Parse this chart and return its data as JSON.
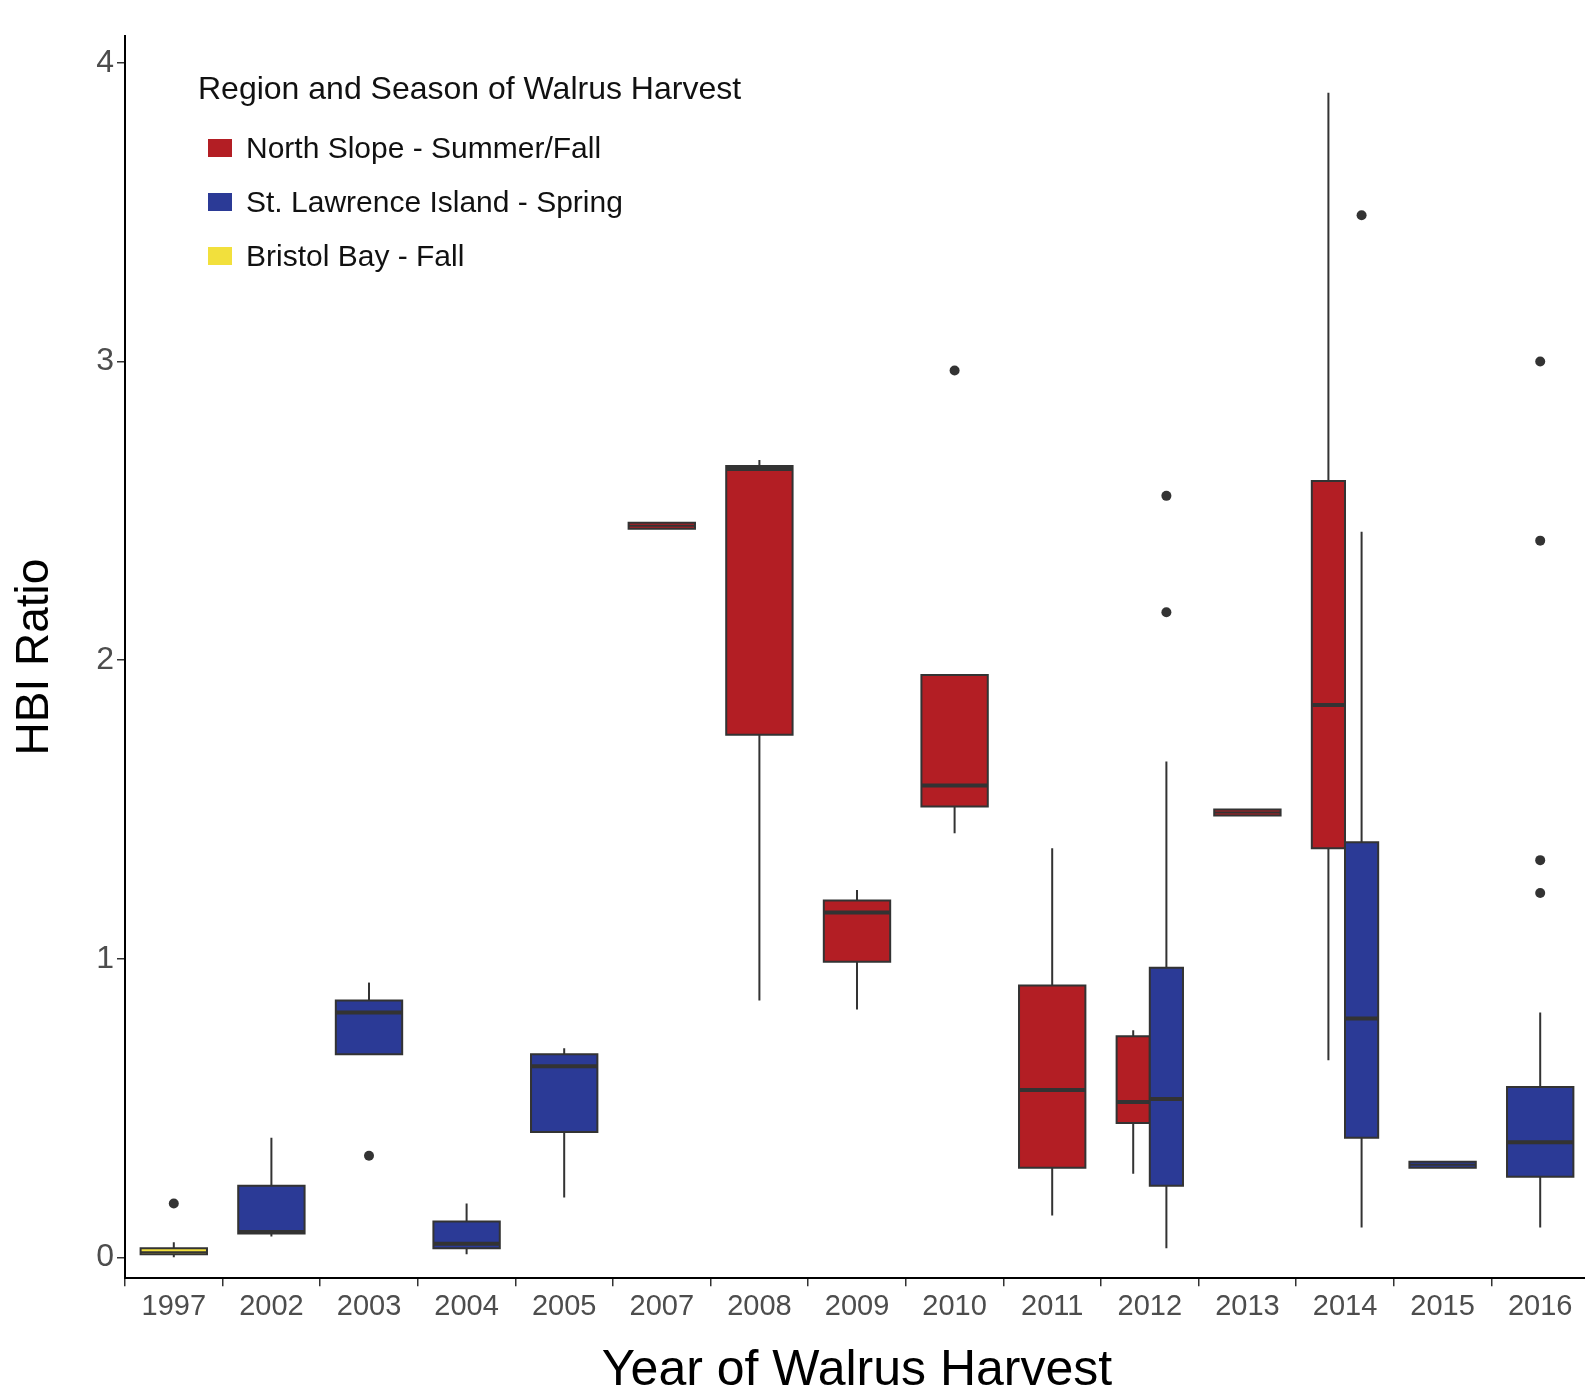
{
  "chart_data": {
    "type": "box",
    "xlabel": "Year of Walrus Harvest",
    "ylabel": "HBI Ratio",
    "legend_title": "Region and Season of Walrus Harvest",
    "legend": "top left",
    "grid": false,
    "categories": [
      "1997",
      "2002",
      "2003",
      "2004",
      "2005",
      "2007",
      "2008",
      "2009",
      "2010",
      "2011",
      "2012",
      "2013",
      "2014",
      "2015",
      "2016"
    ],
    "ylim": [
      -0.07,
      4.09
    ],
    "yticks": [
      0,
      1,
      2,
      3,
      4
    ],
    "series": [
      {
        "name": "North Slope - Summer/Fall",
        "color": "#b31e24",
        "boxes": [
          null,
          null,
          null,
          null,
          null,
          {
            "low": 2.45,
            "q1": 2.45,
            "median": 2.45,
            "q3": 2.45,
            "high": 2.45
          },
          {
            "low": 0.86,
            "q1": 1.75,
            "median": 2.64,
            "q3": 2.65,
            "high": 2.67
          },
          {
            "low": 0.83,
            "q1": 0.99,
            "median": 1.155,
            "q3": 1.195,
            "high": 1.23
          },
          {
            "low": 1.42,
            "q1": 1.51,
            "median": 1.58,
            "q3": 1.95,
            "high": 1.95,
            "outliers": [
              2.97
            ]
          },
          {
            "low": 0.14,
            "q1": 0.3,
            "median": 0.56,
            "q3": 0.91,
            "high": 1.37
          },
          {
            "low": 0.28,
            "q1": 0.45,
            "median": 0.52,
            "q3": 0.74,
            "high": 0.76
          },
          {
            "low": 1.49,
            "q1": 1.49,
            "median": 1.49,
            "q3": 1.49,
            "high": 1.49
          },
          {
            "low": 0.66,
            "q1": 1.37,
            "median": 1.85,
            "q3": 2.6,
            "high": 3.9
          },
          null,
          null
        ]
      },
      {
        "name": "St. Lawrence Island - Spring",
        "color": "#2b3a96",
        "boxes": [
          null,
          {
            "low": 0.07,
            "q1": 0.08,
            "median": 0.085,
            "q3": 0.24,
            "high": 0.4
          },
          {
            "low": 0.68,
            "q1": 0.68,
            "median": 0.82,
            "q3": 0.86,
            "high": 0.92,
            "outliers": [
              0.34
            ]
          },
          {
            "low": 0.01,
            "q1": 0.03,
            "median": 0.045,
            "q3": 0.12,
            "high": 0.18
          },
          {
            "low": 0.2,
            "q1": 0.42,
            "median": 0.64,
            "q3": 0.68,
            "high": 0.7
          },
          null,
          null,
          null,
          null,
          null,
          {
            "low": 0.03,
            "q1": 0.24,
            "median": 0.53,
            "q3": 0.97,
            "high": 1.66,
            "outliers": [
              2.16,
              2.55
            ]
          },
          null,
          {
            "low": 0.1,
            "q1": 0.4,
            "median": 0.8,
            "q3": 1.39,
            "high": 2.43,
            "outliers": [
              3.49
            ]
          },
          {
            "low": 0.31,
            "q1": 0.31,
            "median": 0.31,
            "q3": 0.31,
            "high": 0.31
          },
          {
            "low": 0.1,
            "q1": 0.27,
            "median": 0.385,
            "q3": 0.57,
            "high": 0.82,
            "outliers": [
              1.22,
              1.33,
              2.4,
              3.0
            ]
          }
        ]
      },
      {
        "name": "Bristol Bay - Fall",
        "color": "#f2e03c",
        "boxes": [
          {
            "low": 0.0,
            "q1": 0.01,
            "median": 0.017,
            "q3": 0.03,
            "high": 0.05,
            "outliers": [
              0.18
            ]
          },
          null,
          null,
          null,
          null,
          null,
          null,
          null,
          null,
          null,
          null,
          null,
          null,
          null,
          null
        ]
      }
    ]
  }
}
